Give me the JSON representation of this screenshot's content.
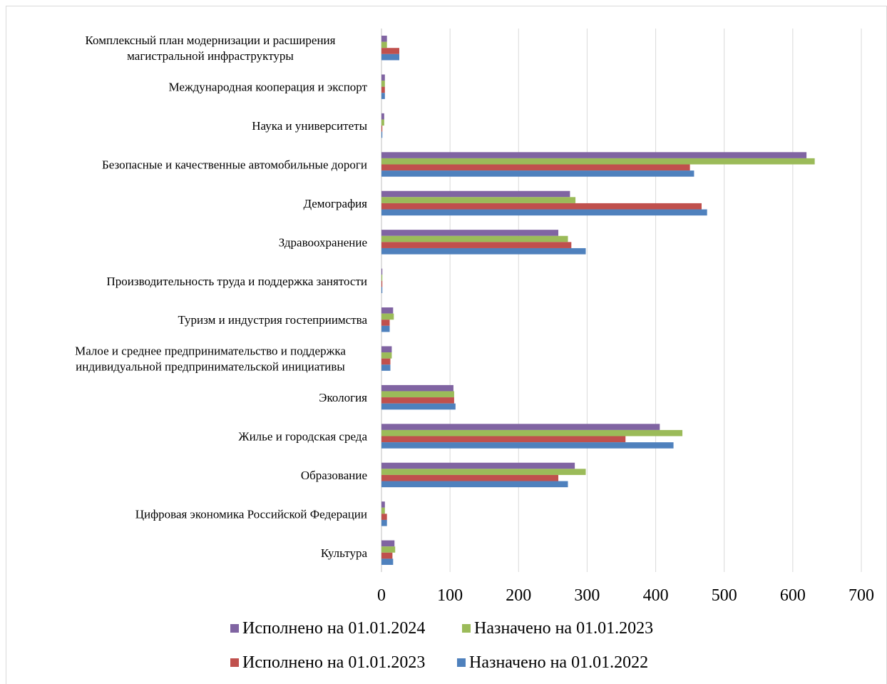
{
  "chart_data": {
    "type": "bar",
    "orientation": "horizontal",
    "title": "",
    "xlabel": "",
    "ylabel": "",
    "xlim": [
      0,
      700
    ],
    "ticks": [
      "0",
      "100",
      "200",
      "300",
      "400",
      "500",
      "600",
      "700"
    ],
    "grid": "vertical",
    "legend_position": "bottom",
    "categories": [
      [
        "Комплексный план модернизации и расширения",
        "магистральной инфраструктуры"
      ],
      [
        "Международная кооперация и экспорт"
      ],
      [
        "Наука и университеты"
      ],
      [
        "Безопасные и качественные автомобильные дороги"
      ],
      [
        "Демография"
      ],
      [
        "Здравоохранение"
      ],
      [
        "Производительность труда и поддержка занятости"
      ],
      [
        "Туризм и индустрия гостеприимства"
      ],
      [
        "Малое и среднее предпринимательство и поддержка",
        "индивидуальной предпринимательской инициативы"
      ],
      [
        "Экология"
      ],
      [
        "Жилье и городская среда"
      ],
      [
        "Образование"
      ],
      [
        "Цифровая экономика Российской Федерации"
      ],
      [
        "Культура"
      ]
    ],
    "series": [
      {
        "name": "Исполнено на 01.01.2024",
        "color": "#8064a2",
        "values": [
          8,
          5,
          4,
          620,
          275,
          258,
          1,
          17,
          15,
          105,
          406,
          282,
          5,
          19
        ]
      },
      {
        "name": "Назначено на 01.01.2023",
        "color": "#9bbb59",
        "values": [
          8,
          5,
          4,
          632,
          283,
          272,
          1,
          18,
          15,
          106,
          439,
          298,
          5,
          20
        ]
      },
      {
        "name": "Исполнено на 01.01.2023",
        "color": "#c0504d",
        "values": [
          26,
          5,
          1,
          450,
          467,
          277,
          1,
          12,
          13,
          106,
          356,
          258,
          8,
          16
        ]
      },
      {
        "name": "Назначено на 01.01.2022",
        "color": "#4f81bd",
        "values": [
          26,
          5,
          1,
          456,
          475,
          298,
          1,
          12,
          13,
          108,
          426,
          272,
          8,
          17
        ]
      }
    ],
    "legend_rows": [
      [
        0,
        1
      ],
      [
        2,
        3
      ]
    ]
  }
}
